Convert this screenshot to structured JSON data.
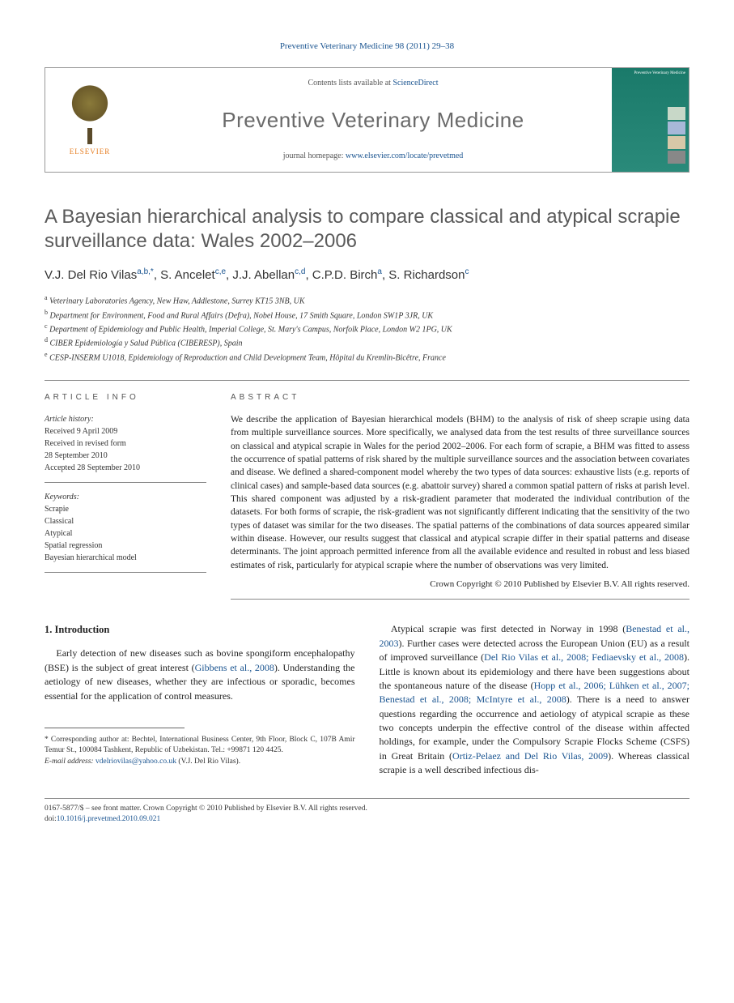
{
  "header": {
    "citation": "Preventive Veterinary Medicine 98 (2011) 29–38",
    "contents_prefix": "Contents lists available at ",
    "contents_link": "ScienceDirect",
    "journal_name": "Preventive Veterinary Medicine",
    "homepage_prefix": "journal homepage: ",
    "homepage_url": "www.elsevier.com/locate/prevetmed",
    "publisher": "ELSEVIER",
    "cover_label": "Preventive Veterinary Medicine"
  },
  "article": {
    "title": "A Bayesian hierarchical analysis to compare classical and atypical scrapie surveillance data: Wales 2002–2006",
    "authors_html": "V.J. Del Rio Vilas<sup>a,b,*</sup>, S. Ancelet<sup>c,e</sup>, J.J. Abellan<sup>c,d</sup>, C.P.D. Birch<sup>a</sup>, S. Richardson<sup>c</sup>",
    "affiliations": [
      {
        "sup": "a",
        "text": "Veterinary Laboratories Agency, New Haw, Addlestone, Surrey KT15 3NB, UK"
      },
      {
        "sup": "b",
        "text": "Department for Environment, Food and Rural Affairs (Defra), Nobel House, 17 Smith Square, London SW1P 3JR, UK"
      },
      {
        "sup": "c",
        "text": "Department of Epidemiology and Public Health, Imperial College, St. Mary's Campus, Norfolk Place, London W2 1PG, UK"
      },
      {
        "sup": "d",
        "text": "CIBER Epidemiología y Salud Pública (CIBERESP), Spain"
      },
      {
        "sup": "e",
        "text": "CESP-INSERM U1018, Epidemiology of Reproduction and Child Development Team, Hôpital du Kremlin-Bicêtre, France"
      }
    ]
  },
  "article_info": {
    "heading": "ARTICLE INFO",
    "history_head": "Article history:",
    "history": [
      "Received 9 April 2009",
      "Received in revised form",
      "28 September 2010",
      "Accepted 28 September 2010"
    ],
    "keywords_head": "Keywords:",
    "keywords": [
      "Scrapie",
      "Classical",
      "Atypical",
      "Spatial regression",
      "Bayesian hierarchical model"
    ]
  },
  "abstract": {
    "heading": "ABSTRACT",
    "text": "We describe the application of Bayesian hierarchical models (BHM) to the analysis of risk of sheep scrapie using data from multiple surveillance sources. More specifically, we analysed data from the test results of three surveillance sources on classical and atypical scrapie in Wales for the period 2002–2006. For each form of scrapie, a BHM was fitted to assess the occurrence of spatial patterns of risk shared by the multiple surveillance sources and the association between covariates and disease. We defined a shared-component model whereby the two types of data sources: exhaustive lists (e.g. reports of clinical cases) and sample-based data sources (e.g. abattoir survey) shared a common spatial pattern of risks at parish level. This shared component was adjusted by a risk-gradient parameter that moderated the individual contribution of the datasets. For both forms of scrapie, the risk-gradient was not significantly different indicating that the sensitivity of the two types of dataset was similar for the two diseases. The spatial patterns of the combinations of data sources appeared similar within disease. However, our results suggest that classical and atypical scrapie differ in their spatial patterns and disease determinants. The joint approach permitted inference from all the available evidence and resulted in robust and less biased estimates of risk, particularly for atypical scrapie where the number of observations was very limited.",
    "copyright": "Crown Copyright © 2010 Published by Elsevier B.V. All rights reserved."
  },
  "body": {
    "section_number": "1.",
    "section_title": "Introduction",
    "col1_p1_pre": "Early detection of new diseases such as bovine spongiform encephalopathy (BSE) is the subject of great interest (",
    "col1_p1_link": "Gibbens et al., 2008",
    "col1_p1_post": "). Understanding the aetiology of new diseases, whether they are infectious or sporadic, becomes essential for the application of control measures.",
    "col2_p1_a": "Atypical scrapie was first detected in Norway in 1998 (",
    "col2_link1": "Benestad et al., 2003",
    "col2_p1_b": "). Further cases were detected across the European Union (EU) as a result of improved surveillance (",
    "col2_link2": "Del Rio Vilas et al., 2008; Fediaevsky et al., 2008",
    "col2_p1_c": "). Little is known about its epidemiology and there have been suggestions about the spontaneous nature of the disease (",
    "col2_link3": "Hopp et al., 2006; Lühken et al., 2007; Benestad et al., 2008; McIntyre et al., 2008",
    "col2_p1_d": "). There is a need to answer questions regarding the occurrence and aetiology of atypical scrapie as these two concepts underpin the effective control of the disease within affected holdings, for example, under the Compulsory Scrapie Flocks Scheme (CSFS) in Great Britain (",
    "col2_link4": "Ortiz-Pelaez and Del Rio Vilas, 2009",
    "col2_p1_e": "). Whereas classical scrapie is a well described infectious dis-"
  },
  "footnotes": {
    "corr_pre": "* Corresponding author at: Bechtel, International Business Center, 9th Floor, Block C, 107B Amir Temur St., 100084 Tashkent, Republic of Uzbekistan. Tel.: +99871 120 4425.",
    "email_label": "E-mail address:",
    "email": "vdelriovilas@yahoo.co.uk",
    "email_post": " (V.J. Del Rio Vilas)."
  },
  "footer": {
    "line1": "0167-5877/$ – see front matter. Crown Copyright © 2010 Published by Elsevier B.V. All rights reserved.",
    "doi_label": "doi:",
    "doi": "10.1016/j.prevetmed.2010.09.021"
  },
  "colors": {
    "link": "#1a5490",
    "title_gray": "#5a5a5a",
    "cover_bg": "#1a7a6a"
  }
}
